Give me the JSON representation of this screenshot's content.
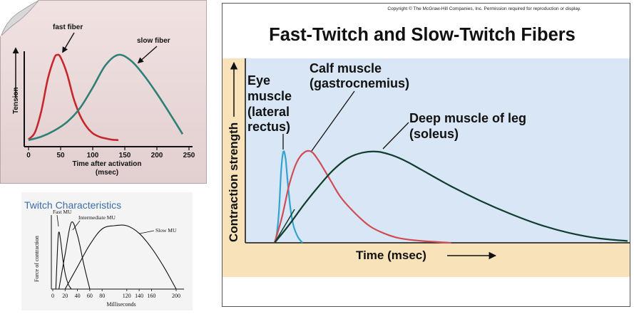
{
  "colors": {
    "panel1_bg_top": "#f1e2e2",
    "panel1_bg_bottom": "#e2cfd0",
    "fast_fiber": "#c6262c",
    "slow_fiber": "#2f7f76",
    "panel3_plot_bg": "#d9e6f5",
    "panel3_axis_band": "#f8e2ba",
    "eye_muscle": "#33a3cf",
    "calf_muscle": "#cf4d55",
    "soleus": "#103d2d"
  },
  "panel1": {
    "xlabel": "Time after activation",
    "xlabel_unit": "(msec)",
    "ylabel": "Tension"
  },
  "panel2": {
    "title": "Twitch Characteristics"
  },
  "panel3": {
    "copyright": "Copyright © The McGraw-Hill Companies, Inc. Permission required for reproduction or display.",
    "title": "Fast-Twitch and Slow-Twitch Fibers",
    "ylabel": "Contraction strength",
    "xlabel": "Time (msec)"
  },
  "chart_data": [
    {
      "type": "line",
      "title": "",
      "xlabel": "Time after activation (msec)",
      "ylabel": "Tension",
      "xlim": [
        0,
        250
      ],
      "xticks": [
        0,
        50,
        100,
        150,
        200,
        250
      ],
      "grid": false,
      "series": [
        {
          "name": "fast fiber",
          "x": [
            0,
            10,
            20,
            30,
            40,
            45,
            50,
            60,
            70,
            80,
            90,
            100,
            110,
            120,
            130,
            140
          ],
          "y": [
            0.02,
            0.1,
            0.35,
            0.72,
            0.96,
            1.0,
            0.97,
            0.78,
            0.5,
            0.3,
            0.17,
            0.09,
            0.05,
            0.03,
            0.015,
            0.01
          ]
        },
        {
          "name": "slow fiber",
          "x": [
            0,
            20,
            40,
            60,
            80,
            100,
            120,
            140,
            160,
            180,
            200,
            220,
            240
          ],
          "y": [
            0.01,
            0.05,
            0.12,
            0.22,
            0.38,
            0.62,
            0.88,
            1.0,
            0.93,
            0.76,
            0.55,
            0.32,
            0.08
          ]
        }
      ]
    },
    {
      "type": "line",
      "title": "Twitch Characteristics",
      "xlabel": "Milliseconds",
      "ylabel": "Force of contraction",
      "xlim": [
        0,
        200
      ],
      "xticks": [
        0,
        20,
        40,
        60,
        80,
        120,
        140,
        160,
        200
      ],
      "grid": false,
      "series": [
        {
          "name": "Fast MU",
          "x": [
            5,
            8,
            10,
            13,
            16,
            20,
            25,
            30
          ],
          "y": [
            0,
            0.7,
            0.9,
            0.75,
            0.5,
            0.25,
            0.08,
            0
          ]
        },
        {
          "name": "Intermediate MU",
          "x": [
            10,
            20,
            30,
            40,
            50,
            60
          ],
          "y": [
            0,
            0.55,
            1.05,
            0.85,
            0.4,
            0
          ]
        },
        {
          "name": "Slow MU",
          "x": [
            20,
            40,
            60,
            80,
            100,
            120,
            140,
            160,
            180,
            200
          ],
          "y": [
            0,
            0.35,
            0.7,
            0.95,
            1.0,
            1.0,
            0.88,
            0.65,
            0.35,
            0
          ]
        }
      ]
    },
    {
      "type": "line",
      "title": "Fast-Twitch and Slow-Twitch Fibers",
      "xlabel": "Time (msec)",
      "ylabel": "Contraction strength",
      "grid": false,
      "series": [
        {
          "name": "Eye muscle (lateral rectus)",
          "x": [
            0,
            3,
            6,
            9,
            12,
            15,
            18,
            22,
            26,
            32,
            38
          ],
          "y": [
            0,
            0.1,
            0.35,
            0.8,
            1.0,
            0.92,
            0.65,
            0.35,
            0.18,
            0.06,
            0
          ]
        },
        {
          "name": "Calf muscle (gastrocnemius)",
          "x": [
            0,
            10,
            20,
            30,
            40,
            50,
            60,
            75,
            90,
            110,
            130,
            150,
            170,
            200,
            240
          ],
          "y": [
            0,
            0.28,
            0.64,
            0.88,
            0.99,
            1.0,
            0.9,
            0.7,
            0.5,
            0.32,
            0.18,
            0.1,
            0.05,
            0.02,
            0
          ]
        },
        {
          "name": "Deep muscle of leg (soleus)",
          "x": [
            0,
            20,
            40,
            60,
            80,
            100,
            120,
            140,
            160,
            180,
            200,
            240,
            280,
            320,
            360,
            400,
            440,
            480
          ],
          "y": [
            0,
            0.2,
            0.42,
            0.62,
            0.8,
            0.93,
            0.99,
            1.0,
            0.96,
            0.89,
            0.8,
            0.62,
            0.46,
            0.32,
            0.2,
            0.11,
            0.05,
            0.02
          ]
        }
      ]
    }
  ]
}
